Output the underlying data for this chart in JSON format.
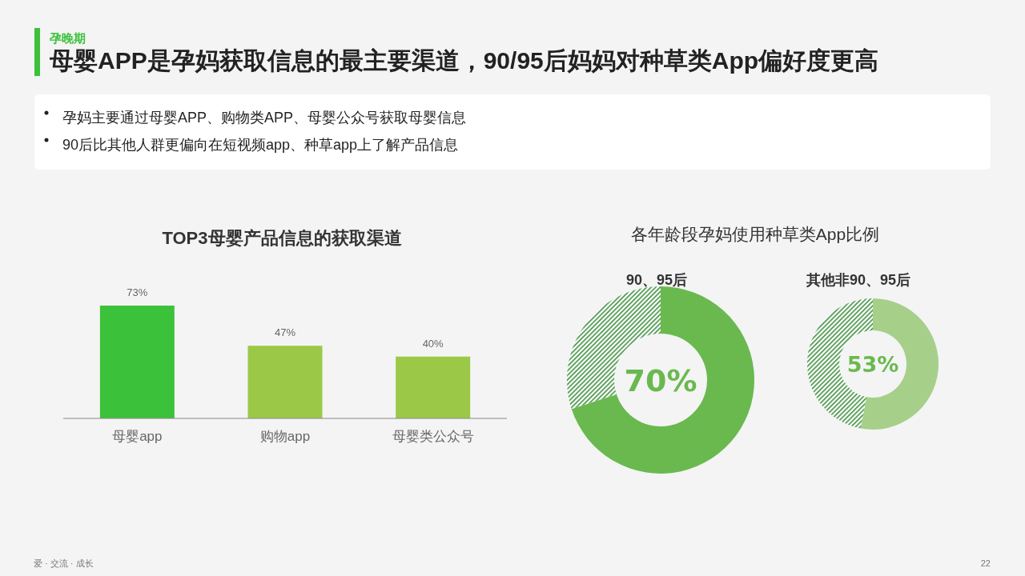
{
  "chart_data": [
    {
      "type": "other",
      "title": "母婴APP是孕妈获取信息的最主要渠道，90/95后妈妈对种草类App偏好度更高",
      "subtitle": "孕晚期",
      "annotations": [
        "孕妈主要通过母婴APP、购物类APP、母婴公众号获取母婴信息",
        "90后比其他人群更偏向在短视频app、种草app上了解产品信息",
        "爱 · 交流 · 成长",
        "22"
      ]
    },
    {
      "type": "bar",
      "title": "TOP3母婴产品信息的获取渠道",
      "categories": [
        "母婴app",
        "购物app",
        "母婴类公众号"
      ],
      "values": [
        73,
        47,
        40
      ],
      "colors": [
        "#3cc13b",
        "#9bc947",
        "#9bc947"
      ],
      "value_labels": [
        "73%",
        "47%",
        "40%"
      ]
    },
    {
      "type": "donut",
      "title": "各年龄段孕妈使用种草类App比例",
      "subtitle": "90、95后",
      "categories": [
        null,
        null
      ],
      "values": [
        70,
        30
      ],
      "colors": [
        "#6ab94f",
        "#3f8f3f"
      ],
      "value_labels": [
        "70%",
        null
      ]
    },
    {
      "type": "donut",
      "subtitle": "其他非90、95后",
      "categories": [
        null,
        null
      ],
      "values": [
        53,
        47
      ],
      "colors": [
        "#a6d08a",
        "#3f8f3f"
      ],
      "value_labels": [
        "53%",
        null
      ]
    }
  ]
}
